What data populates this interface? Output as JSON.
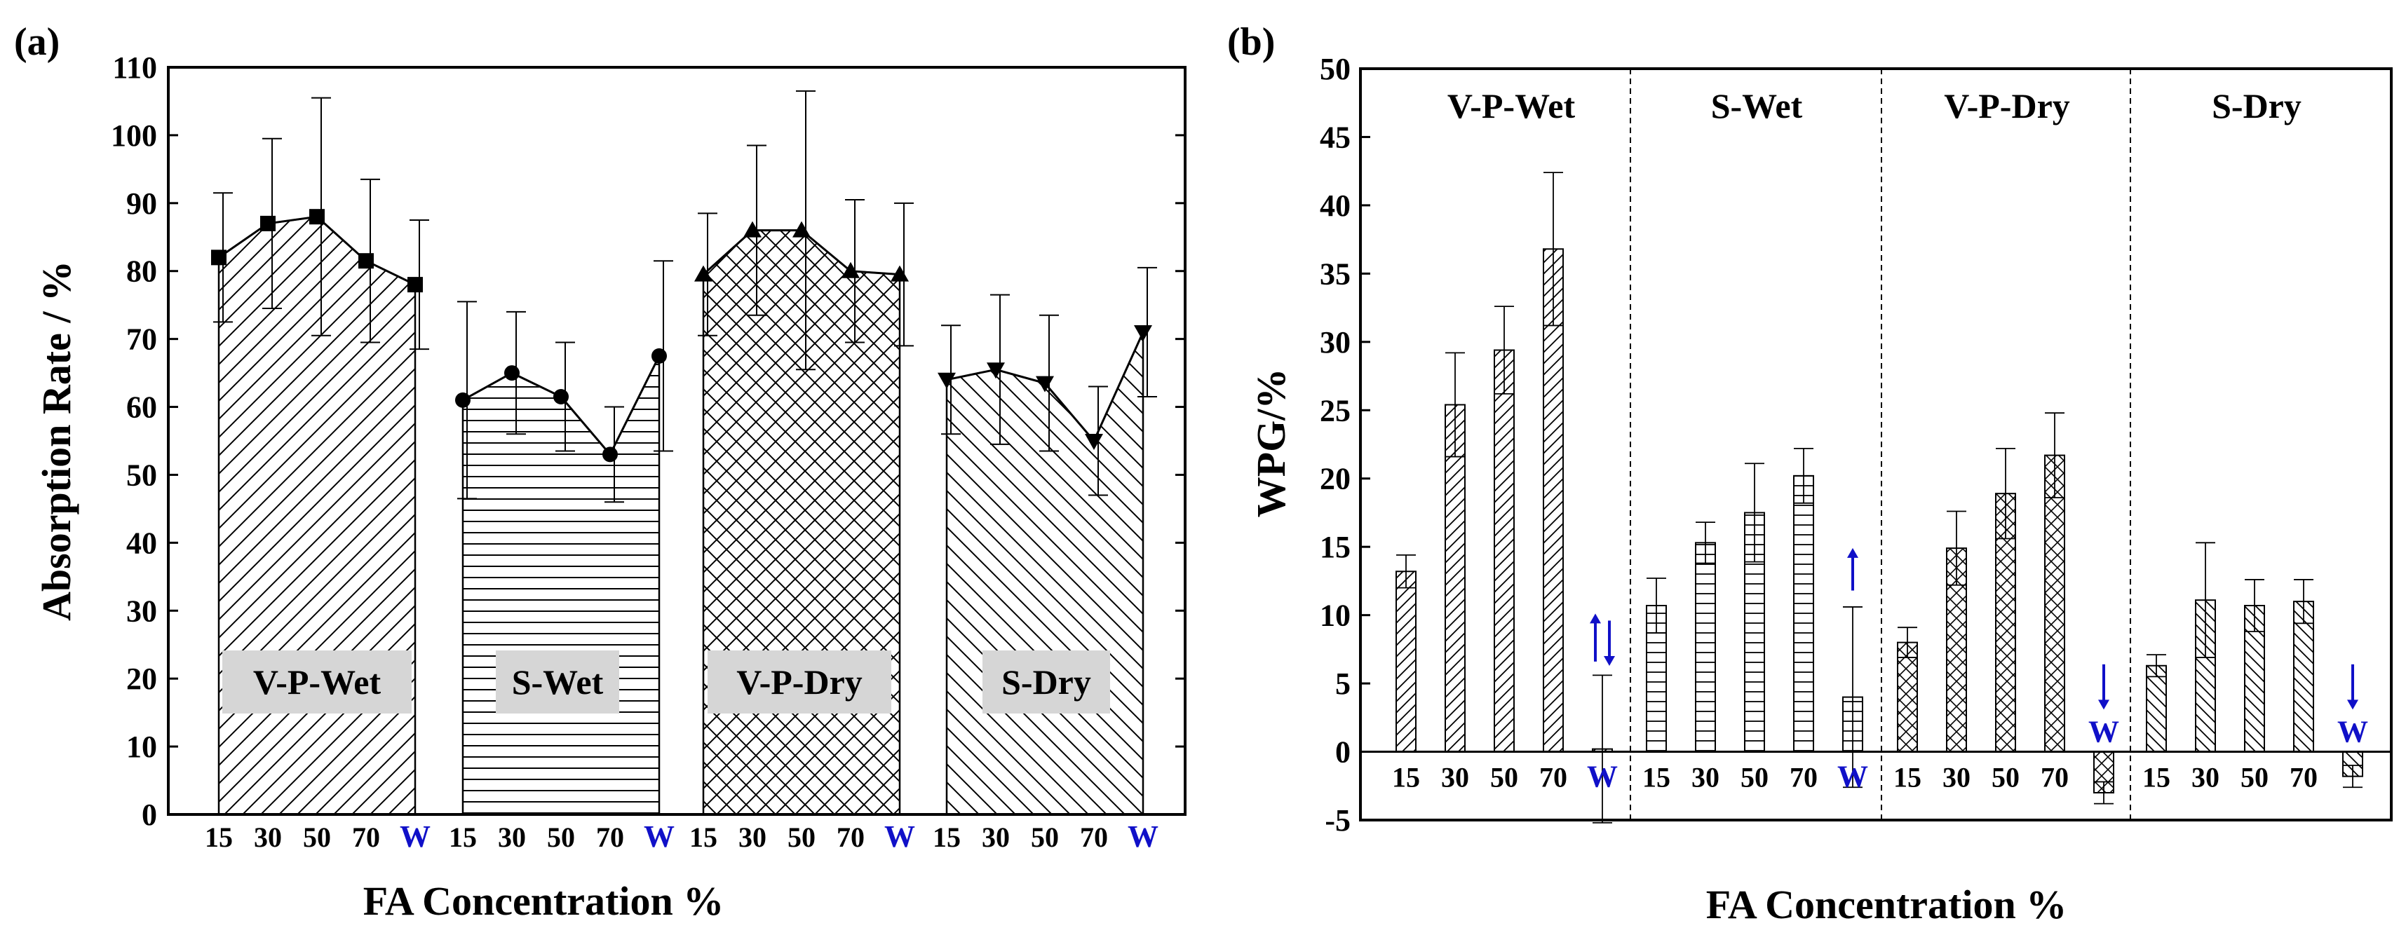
{
  "chart_data": [
    {
      "panel": "(a)",
      "type": "bar",
      "xlabel": "FA Concentration %",
      "ylabel": "Absorption Rate / %",
      "ylim": [
        0,
        110
      ],
      "yticks": [
        0,
        10,
        20,
        30,
        40,
        50,
        60,
        70,
        80,
        90,
        100,
        110
      ],
      "categories": [
        "15",
        "30",
        "50",
        "70",
        "W"
      ],
      "grid": false,
      "series": [
        {
          "name": "V-P-Wet",
          "marker": "square",
          "pattern": "diagonal",
          "values": [
            82,
            87,
            88,
            81.5,
            78
          ],
          "errors": [
            9.5,
            12.5,
            17.5,
            12,
            9.5
          ]
        },
        {
          "name": "S-Wet",
          "marker": "circle",
          "pattern": "horizontal",
          "values": [
            61,
            65,
            61.5,
            53,
            67.5
          ],
          "errors": [
            14.5,
            9,
            8,
            7,
            14
          ]
        },
        {
          "name": "V-P-Dry",
          "marker": "triangle-up",
          "pattern": "crosshatch",
          "values": [
            79.5,
            86,
            86,
            80,
            79.5
          ],
          "errors": [
            9,
            12.5,
            20.5,
            10.5,
            10.5
          ]
        },
        {
          "name": "S-Dry",
          "marker": "triangle-down",
          "pattern": "backslash",
          "values": [
            64,
            65.5,
            63.5,
            55,
            71
          ],
          "errors": [
            8,
            11,
            10,
            8,
            9.5
          ]
        }
      ]
    },
    {
      "panel": "(b)",
      "type": "bar",
      "xlabel": "FA Concentration %",
      "ylabel": "WPG/%",
      "ylim": [
        -5,
        50
      ],
      "yticks": [
        -5,
        0,
        5,
        10,
        15,
        20,
        25,
        30,
        35,
        40,
        45,
        50
      ],
      "categories": [
        "15",
        "30",
        "50",
        "70",
        "W"
      ],
      "grid": false,
      "series": [
        {
          "name": "V-P-Wet",
          "pattern": "diagonal",
          "values": [
            13.2,
            25.4,
            29.4,
            36.8,
            0.2
          ],
          "errors": [
            1.2,
            3.8,
            3.2,
            5.6,
            5.4
          ],
          "w_arrow": "up-down"
        },
        {
          "name": "S-Wet",
          "pattern": "horizontal",
          "values": [
            10.7,
            15.3,
            17.5,
            20.2,
            4
          ],
          "errors": [
            2,
            1.5,
            3.6,
            2,
            6.6
          ],
          "w_arrow": "up"
        },
        {
          "name": "V-P-Dry",
          "pattern": "crosshatch",
          "values": [
            8,
            14.9,
            18.9,
            21.7,
            -3
          ],
          "errors": [
            1.1,
            2.7,
            3.3,
            3.1,
            0.8
          ],
          "w_arrow": "down"
        },
        {
          "name": "S-Dry",
          "pattern": "backslash",
          "values": [
            6.3,
            11.1,
            10.7,
            11,
            -1.8
          ],
          "errors": [
            0.8,
            4.2,
            1.9,
            1.6,
            0.8
          ],
          "w_arrow": "down"
        }
      ]
    }
  ],
  "colors": {
    "w_label": "#1010c8",
    "label_box": "#d6d6d6"
  }
}
